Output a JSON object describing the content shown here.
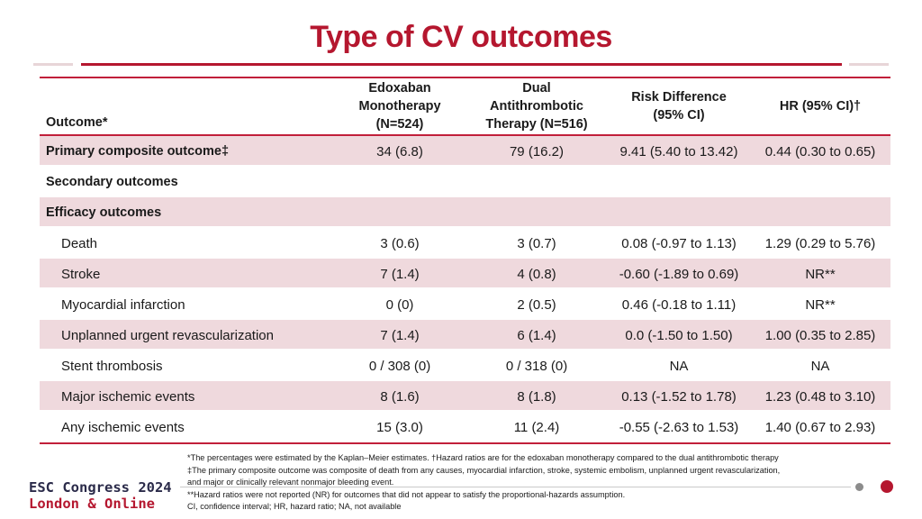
{
  "title": "Type of CV outcomes",
  "table": {
    "headers": {
      "outcome": "Outcome*",
      "col1": [
        "Edoxaban",
        "Monotherapy",
        "(N=524)"
      ],
      "col2": [
        "Dual",
        "Antithrombotic",
        "Therapy (N=516)"
      ],
      "col3": [
        "Risk Difference",
        "(95% CI)"
      ],
      "col4": [
        "HR (95% CI)†"
      ]
    },
    "rows": [
      {
        "label": "Primary composite outcome‡",
        "v1": "34 (6.8)",
        "v2": "79 (16.2)",
        "v3": "9.41 (5.40 to 13.42)",
        "v4": "0.44 (0.30 to 0.65)"
      },
      {
        "label": "Secondary outcomes",
        "v1": "",
        "v2": "",
        "v3": "",
        "v4": ""
      },
      {
        "label": "Efficacy outcomes",
        "v1": "",
        "v2": "",
        "v3": "",
        "v4": ""
      },
      {
        "label": "Death",
        "v1": "3 (0.6)",
        "v2": "3 (0.7)",
        "v3": "0.08 (-0.97 to 1.13)",
        "v4": "1.29 (0.29 to 5.76)"
      },
      {
        "label": "Stroke",
        "v1": "7 (1.4)",
        "v2": "4 (0.8)",
        "v3": "-0.60 (-1.89 to 0.69)",
        "v4": "NR**"
      },
      {
        "label": "Myocardial infarction",
        "v1": "0 (0)",
        "v2": "2 (0.5)",
        "v3": "0.46 (-0.18 to 1.11)",
        "v4": "NR**"
      },
      {
        "label": "Unplanned urgent revascularization",
        "v1": "7 (1.4)",
        "v2": "6 (1.4)",
        "v3": "0.0 (-1.50 to 1.50)",
        "v4": "1.00 (0.35 to 2.85)"
      },
      {
        "label": "Stent thrombosis",
        "v1": "0 / 308 (0)",
        "v2": "0 / 318 (0)",
        "v3": "NA",
        "v4": "NA"
      },
      {
        "label": "Major ischemic events",
        "v1": "8 (1.6)",
        "v2": "8 (1.8)",
        "v3": "0.13 (-1.52 to 1.78)",
        "v4": "1.23 (0.48 to 3.10)"
      },
      {
        "label": "Any ischemic events",
        "v1": "15 (3.0)",
        "v2": "11 (2.4)",
        "v3": "-0.55 (-2.63 to 1.53)",
        "v4": "1.40 (0.67 to 2.93)"
      }
    ]
  },
  "footnotes": [
    "*The percentages were estimated by the Kaplan–Meier estimates.  †Hazard ratios are for the edoxaban monotherapy compared to the dual antithrombotic therapy",
    "‡The primary composite outcome was composite of death from any causes, myocardial infarction, stroke, systemic embolism, unplanned urgent revascularization,",
    "and major or clinically relevant nonmajor bleeding event.",
    "**Hazard ratios were not reported (NR) for outcomes that did not appear to satisfy the proportional-hazards assumption.",
    "CI, confidence interval; HR, hazard ratio; NA, not available"
  ],
  "brand": {
    "line1": "ESC Congress 2024",
    "line2": "London & Online"
  },
  "colors": {
    "accent": "#b5172f",
    "row_shade": "#efd9dd"
  }
}
